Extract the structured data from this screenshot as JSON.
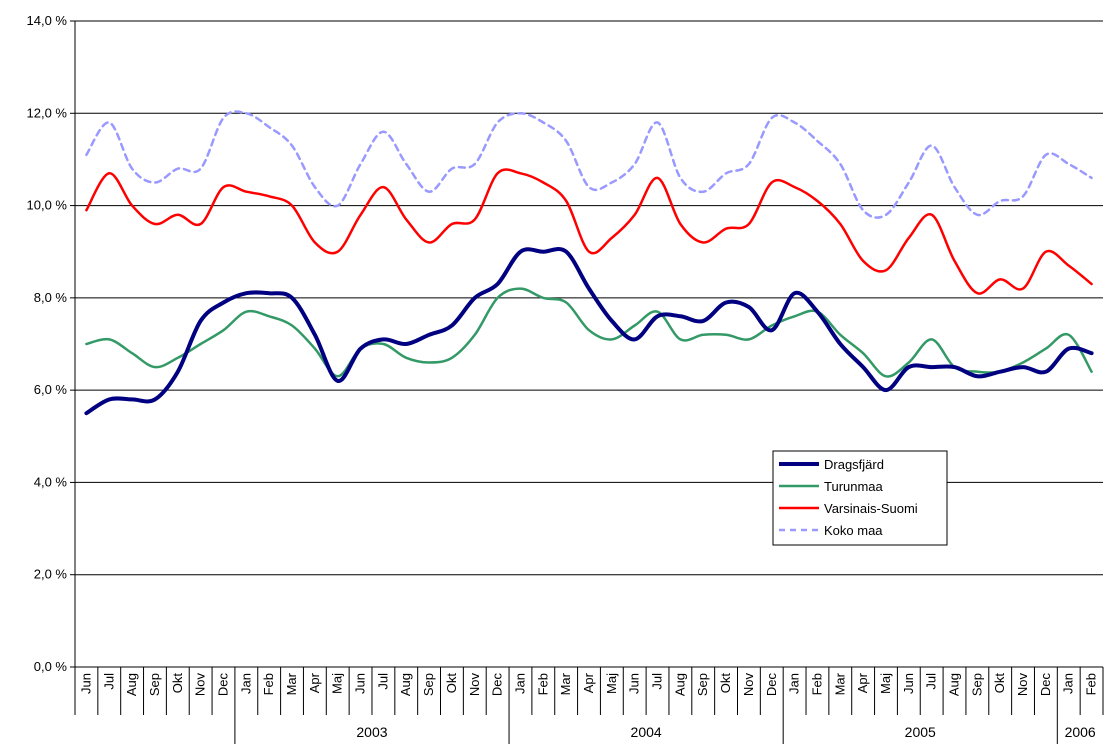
{
  "chart_data": {
    "type": "line",
    "title": "",
    "xlabel": "",
    "ylabel": "",
    "ylim": [
      0,
      14
    ],
    "y_ticks": [
      "0,0 %",
      "2,0 %",
      "4,0 %",
      "6,0 %",
      "8,0 %",
      "10,0 %",
      "12,0 %",
      "14,0 %"
    ],
    "categories": [
      "Jun",
      "Jul",
      "Aug",
      "Sep",
      "Okt",
      "Nov",
      "Dec",
      "Jan",
      "Feb",
      "Mar",
      "Apr",
      "Maj",
      "Jun",
      "Jul",
      "Aug",
      "Sep",
      "Okt",
      "Nov",
      "Dec",
      "Jan",
      "Feb",
      "Mar",
      "Apr",
      "Maj",
      "Jun",
      "Jul",
      "Aug",
      "Sep",
      "Okt",
      "Nov",
      "Dec",
      "Jan",
      "Feb",
      "Mar",
      "Apr",
      "Maj",
      "Jun",
      "Jul",
      "Aug",
      "Sep",
      "Okt",
      "Nov",
      "Dec",
      "Jan",
      "Feb"
    ],
    "year_labels": [
      "2003",
      "2004",
      "2005",
      "2006"
    ],
    "grid": true,
    "legend_position": "center-right",
    "series": [
      {
        "name": "Dragsfjärd",
        "color": "#000080",
        "style": "solid-thick",
        "values": [
          5.5,
          5.8,
          5.8,
          5.8,
          6.4,
          7.5,
          7.9,
          8.1,
          8.1,
          8.0,
          7.2,
          6.2,
          6.9,
          7.1,
          7.0,
          7.2,
          7.4,
          8.0,
          8.3,
          9.0,
          9.0,
          9.0,
          8.2,
          7.5,
          7.1,
          7.6,
          7.6,
          7.5,
          7.9,
          7.8,
          7.3,
          8.1,
          7.7,
          7.0,
          6.5,
          6.0,
          6.5,
          6.5,
          6.5,
          6.3,
          6.4,
          6.5,
          6.4,
          6.9,
          6.8
        ]
      },
      {
        "name": "Turunmaa",
        "color": "#339966",
        "style": "solid",
        "values": [
          7.0,
          7.1,
          6.8,
          6.5,
          6.7,
          7.0,
          7.3,
          7.7,
          7.6,
          7.4,
          6.9,
          6.3,
          6.9,
          7.0,
          6.7,
          6.6,
          6.7,
          7.2,
          8.0,
          8.2,
          8.0,
          7.9,
          7.3,
          7.1,
          7.4,
          7.7,
          7.1,
          7.2,
          7.2,
          7.1,
          7.4,
          7.6,
          7.7,
          7.2,
          6.8,
          6.3,
          6.6,
          7.1,
          6.5,
          6.4,
          6.4,
          6.6,
          6.9,
          7.2,
          6.4
        ]
      },
      {
        "name": "Varsinais-Suomi",
        "color": "#ff0000",
        "style": "solid",
        "values": [
          9.9,
          10.7,
          10.0,
          9.6,
          9.8,
          9.6,
          10.4,
          10.3,
          10.2,
          10.0,
          9.2,
          9.0,
          9.8,
          10.4,
          9.7,
          9.2,
          9.6,
          9.7,
          10.7,
          10.7,
          10.5,
          10.1,
          9.0,
          9.3,
          9.8,
          10.6,
          9.6,
          9.2,
          9.5,
          9.6,
          10.5,
          10.4,
          10.1,
          9.6,
          8.8,
          8.6,
          9.3,
          9.8,
          8.8,
          8.1,
          8.4,
          8.2,
          9.0,
          8.7,
          8.3
        ]
      },
      {
        "name": "Koko maa",
        "color": "#9999ff",
        "style": "dashed",
        "values": [
          11.1,
          11.8,
          10.8,
          10.5,
          10.8,
          10.8,
          11.9,
          12.0,
          11.7,
          11.3,
          10.4,
          10.0,
          10.9,
          11.6,
          10.9,
          10.3,
          10.8,
          10.9,
          11.8,
          12.0,
          11.8,
          11.4,
          10.4,
          10.5,
          10.9,
          11.8,
          10.6,
          10.3,
          10.7,
          10.9,
          11.9,
          11.8,
          11.4,
          10.9,
          9.9,
          9.8,
          10.5,
          11.3,
          10.4,
          9.8,
          10.1,
          10.2,
          11.1,
          10.9,
          10.6
        ]
      }
    ]
  }
}
